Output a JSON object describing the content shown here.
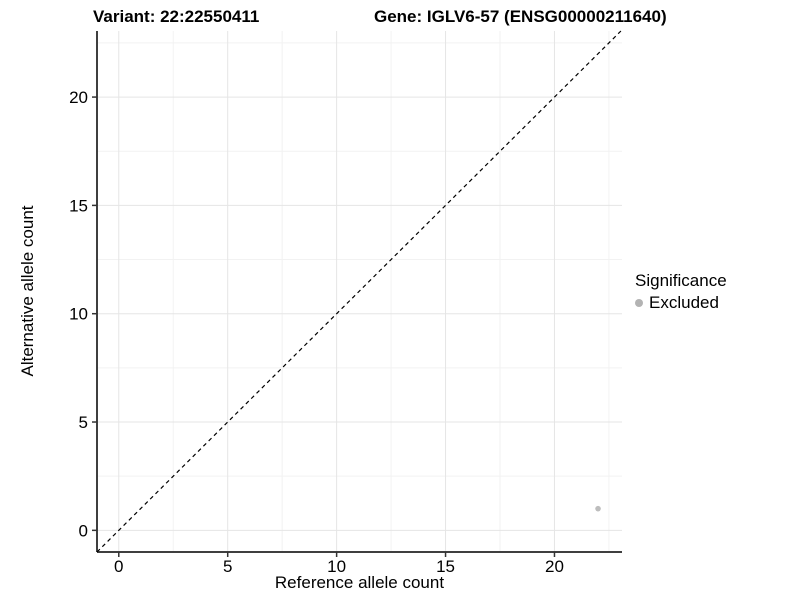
{
  "header": {
    "variant_title": "Variant: 22:22550411",
    "gene_title": "Gene: IGLV6-57 (ENSG00000211640)"
  },
  "chart_data": {
    "type": "scatter",
    "xlabel": "Reference allele count",
    "ylabel": "Alternative allele count",
    "xlim": [
      -1,
      23.1
    ],
    "ylim": [
      -1,
      23.05
    ],
    "xticks": [
      0,
      5,
      10,
      15,
      20
    ],
    "yticks": [
      0,
      5,
      10,
      15,
      20
    ],
    "xminor": [
      2.5,
      7.5,
      12.5,
      17.5,
      22.5
    ],
    "yminor": [
      2.5,
      7.5,
      12.5,
      17.5,
      22.5
    ],
    "grid": "major+minor",
    "reference_line": {
      "kind": "identity-y-equals-x",
      "style": "dashed",
      "color": "#000000"
    },
    "series": [
      {
        "name": "Excluded",
        "color": "#bdbdbd",
        "points": [
          {
            "x": 22,
            "y": 1
          }
        ]
      }
    ],
    "legend": {
      "title": "Significance",
      "position": "right",
      "items": [
        {
          "label": "Excluded",
          "color": "#b3b3b3"
        }
      ]
    },
    "colors": {
      "axis_line": "#3f3f3f",
      "tick_mark": "#333333",
      "tick_label": "#000000",
      "grid_major": "#e5e5e5",
      "grid_minor": "#f2f2f2",
      "panel_background": "#ffffff"
    }
  }
}
